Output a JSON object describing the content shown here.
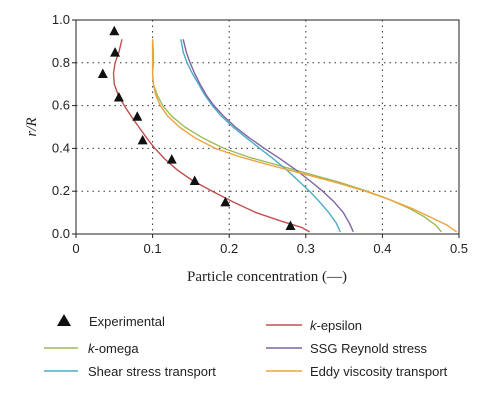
{
  "chart_data": {
    "type": "line",
    "xlabel": "Particle concentration (—)",
    "ylabel": "r/R",
    "xlim": [
      0,
      0.5
    ],
    "ylim": [
      0,
      1.0
    ],
    "xticks": [
      "0",
      "0.1",
      "0.2",
      "0.3",
      "0.4",
      "0.5"
    ],
    "yticks": [
      "0.0",
      "0.2",
      "0.4",
      "0.6",
      "0.8",
      "1.0"
    ],
    "grid": "dotted",
    "legend_position": "bottom",
    "experimental": {
      "name": "Experimental",
      "marker": "triangle",
      "color": "#111111",
      "points": [
        {
          "x": 0.05,
          "y": 0.95
        },
        {
          "x": 0.051,
          "y": 0.85
        },
        {
          "x": 0.035,
          "y": 0.75
        },
        {
          "x": 0.056,
          "y": 0.64
        },
        {
          "x": 0.08,
          "y": 0.55
        },
        {
          "x": 0.087,
          "y": 0.44
        },
        {
          "x": 0.125,
          "y": 0.35
        },
        {
          "x": 0.155,
          "y": 0.25
        },
        {
          "x": 0.195,
          "y": 0.15
        },
        {
          "x": 0.28,
          "y": 0.04
        }
      ]
    },
    "series": [
      {
        "name_prefix": "k",
        "name_suffix": "-epsilon",
        "color": "#c0504d",
        "points": [
          [
            0.06,
            0.91
          ],
          [
            0.056,
            0.85
          ],
          [
            0.051,
            0.8
          ],
          [
            0.049,
            0.75
          ],
          [
            0.05,
            0.7
          ],
          [
            0.055,
            0.65
          ],
          [
            0.063,
            0.6
          ],
          [
            0.072,
            0.55
          ],
          [
            0.082,
            0.5
          ],
          [
            0.092,
            0.45
          ],
          [
            0.103,
            0.4
          ],
          [
            0.116,
            0.35
          ],
          [
            0.132,
            0.3
          ],
          [
            0.152,
            0.25
          ],
          [
            0.178,
            0.2
          ],
          [
            0.205,
            0.15
          ],
          [
            0.235,
            0.1
          ],
          [
            0.268,
            0.06
          ],
          [
            0.295,
            0.03
          ],
          [
            0.305,
            0.01
          ]
        ]
      },
      {
        "name_prefix": "k",
        "name_suffix": "-omega",
        "color": "#9bbb59",
        "points": [
          [
            0.1,
            0.91
          ],
          [
            0.101,
            0.85
          ],
          [
            0.101,
            0.8
          ],
          [
            0.1,
            0.75
          ],
          [
            0.101,
            0.7
          ],
          [
            0.106,
            0.65
          ],
          [
            0.113,
            0.6
          ],
          [
            0.125,
            0.55
          ],
          [
            0.142,
            0.5
          ],
          [
            0.165,
            0.45
          ],
          [
            0.193,
            0.4
          ],
          [
            0.225,
            0.36
          ],
          [
            0.265,
            0.32
          ],
          [
            0.305,
            0.28
          ],
          [
            0.345,
            0.24
          ],
          [
            0.38,
            0.2
          ],
          [
            0.41,
            0.16
          ],
          [
            0.435,
            0.12
          ],
          [
            0.455,
            0.08
          ],
          [
            0.47,
            0.04
          ],
          [
            0.477,
            0.01
          ]
        ]
      },
      {
        "name_prefix": "",
        "name_suffix": "Shear stress transport",
        "color": "#4bacc6",
        "points": [
          [
            0.137,
            0.91
          ],
          [
            0.14,
            0.85
          ],
          [
            0.145,
            0.8
          ],
          [
            0.152,
            0.75
          ],
          [
            0.16,
            0.7
          ],
          [
            0.168,
            0.65
          ],
          [
            0.178,
            0.6
          ],
          [
            0.19,
            0.55
          ],
          [
            0.205,
            0.5
          ],
          [
            0.222,
            0.45
          ],
          [
            0.24,
            0.4
          ],
          [
            0.258,
            0.35
          ],
          [
            0.275,
            0.3
          ],
          [
            0.29,
            0.25
          ],
          [
            0.305,
            0.2
          ],
          [
            0.318,
            0.15
          ],
          [
            0.33,
            0.1
          ],
          [
            0.34,
            0.05
          ],
          [
            0.345,
            0.01
          ]
        ]
      },
      {
        "name_prefix": "",
        "name_suffix": "SSG Reynold stress",
        "color": "#8064a2",
        "points": [
          [
            0.14,
            0.91
          ],
          [
            0.144,
            0.85
          ],
          [
            0.149,
            0.8
          ],
          [
            0.155,
            0.75
          ],
          [
            0.162,
            0.7
          ],
          [
            0.17,
            0.65
          ],
          [
            0.18,
            0.6
          ],
          [
            0.193,
            0.55
          ],
          [
            0.208,
            0.5
          ],
          [
            0.226,
            0.45
          ],
          [
            0.246,
            0.4
          ],
          [
            0.267,
            0.35
          ],
          [
            0.287,
            0.3
          ],
          [
            0.305,
            0.25
          ],
          [
            0.322,
            0.2
          ],
          [
            0.337,
            0.15
          ],
          [
            0.349,
            0.1
          ],
          [
            0.357,
            0.05
          ],
          [
            0.362,
            0.01
          ]
        ]
      },
      {
        "name_prefix": "",
        "name_suffix": "Eddy viscosity transport",
        "color": "#f0a23c",
        "points": [
          [
            0.1,
            0.91
          ],
          [
            0.1,
            0.85
          ],
          [
            0.1,
            0.8
          ],
          [
            0.1,
            0.75
          ],
          [
            0.101,
            0.7
          ],
          [
            0.104,
            0.65
          ],
          [
            0.11,
            0.6
          ],
          [
            0.12,
            0.55
          ],
          [
            0.135,
            0.5
          ],
          [
            0.155,
            0.45
          ],
          [
            0.182,
            0.4
          ],
          [
            0.215,
            0.36
          ],
          [
            0.255,
            0.32
          ],
          [
            0.298,
            0.28
          ],
          [
            0.34,
            0.24
          ],
          [
            0.378,
            0.2
          ],
          [
            0.41,
            0.16
          ],
          [
            0.438,
            0.12
          ],
          [
            0.462,
            0.08
          ],
          [
            0.485,
            0.04
          ],
          [
            0.497,
            0.01
          ]
        ]
      }
    ]
  }
}
